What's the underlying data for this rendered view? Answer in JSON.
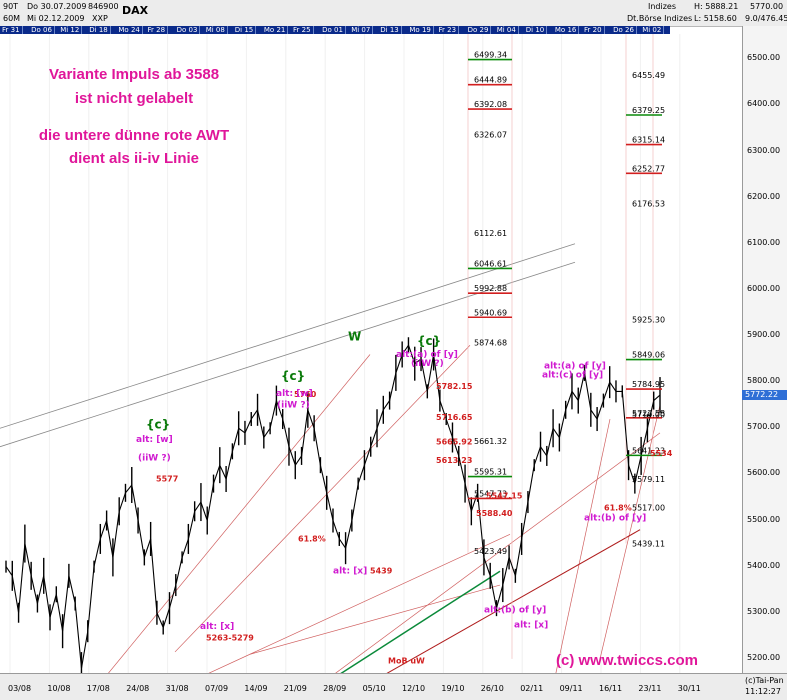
{
  "header": {
    "row1_period": "90T",
    "row1_date": "Do 30.07.2009",
    "row1_code": "846900",
    "symbol": "DAX",
    "row2_period": "60M",
    "row2_date": "Mi 02.12.2009",
    "row2_exchange": "XXP",
    "index_group": "Indizes",
    "index_exchange": "Dt.Börse Indizes",
    "high": "H: 5888.21",
    "low": "L: 5158.60",
    "last": "5770.00",
    "change": "9.0/476.45"
  },
  "date_tabs": [
    "Fr 31",
    "Do 06",
    "Mi 12",
    "Di 18",
    "Mo 24",
    "Fr 28",
    "Do 03",
    "Mi 08",
    "Di 15",
    "Mo 21",
    "Fr 25",
    "Do 01",
    "Mi 07",
    "Di 13",
    "Mo 19",
    "Fr 23",
    "Do 29",
    "Mi 04",
    "Di 10",
    "Mo 16",
    "Fr 20",
    "Do 26",
    "Mi 02"
  ],
  "annotations": {
    "note_line1": "Variante Impuls ab 3588",
    "note_line2": "ist nicht gelabelt",
    "note_line3": "die untere dünne rote AWT",
    "note_line4": "dient als ii-iv Linie",
    "copyright": "(c) www.twiccs.com"
  },
  "bottom": {
    "x_ticks": [
      "03/08",
      "10/08",
      "17/08",
      "24/08",
      "31/08",
      "07/09",
      "14/09",
      "21/09",
      "28/09",
      "05/10",
      "12/10",
      "19/10",
      "26/10",
      "02/11",
      "09/11",
      "16/11",
      "23/11",
      "30/11"
    ],
    "credit": "(c)Tai-Pan",
    "time": "11:12:27"
  },
  "current_price": "5772.22",
  "colors": {
    "up_wave": "#ff00ff",
    "down_wave": "#1a8a8a",
    "green_line": "#0b8a3a",
    "fib_red": "#d21f1f",
    "fib_green": "#0a8a0a",
    "label_magenta": "#d01ad0",
    "label_green": "#0a7a0a"
  },
  "chart_data": {
    "type": "candlestick",
    "title": "DAX",
    "ylim": [
      5150,
      6560
    ],
    "y_ticks": [
      5200,
      5300,
      5400,
      5500,
      5600,
      5700,
      5800,
      5900,
      6000,
      6100,
      6200,
      6300,
      6400,
      6500
    ],
    "price_path": [
      [
        "03/08",
        5400
      ],
      [
        "04/08",
        5380
      ],
      [
        "05/08",
        5300
      ],
      [
        "06/08",
        5450
      ],
      [
        "07/08",
        5380
      ],
      [
        "08/08",
        5320
      ],
      [
        "10/08",
        5380
      ],
      [
        "11/08",
        5290
      ],
      [
        "12/08",
        5340
      ],
      [
        "13/08",
        5260
      ],
      [
        "14/08",
        5380
      ],
      [
        "15/08",
        5320
      ],
      [
        "17/08",
        5180
      ],
      [
        "18/08",
        5260
      ],
      [
        "19/08",
        5400
      ],
      [
        "20/08",
        5460
      ],
      [
        "21/08",
        5500
      ],
      [
        "22/08",
        5420
      ],
      [
        "24/08",
        5520
      ],
      [
        "25/08",
        5560
      ],
      [
        "26/08",
        5577
      ],
      [
        "27/08",
        5500
      ],
      [
        "28/08",
        5420
      ],
      [
        "29/08",
        5460
      ],
      [
        "31/08",
        5300
      ],
      [
        "01/09",
        5268
      ],
      [
        "02/09",
        5310
      ],
      [
        "03/09",
        5360
      ],
      [
        "04/09",
        5420
      ],
      [
        "05/09",
        5460
      ],
      [
        "07/09",
        5520
      ],
      [
        "08/09",
        5540
      ],
      [
        "09/09",
        5500
      ],
      [
        "10/09",
        5580
      ],
      [
        "11/09",
        5620
      ],
      [
        "12/09",
        5590
      ],
      [
        "14/09",
        5650
      ],
      [
        "15/09",
        5700
      ],
      [
        "16/09",
        5690
      ],
      [
        "17/09",
        5720
      ],
      [
        "18/09",
        5740
      ],
      [
        "19/09",
        5680
      ],
      [
        "21/09",
        5700
      ],
      [
        "22/09",
        5760
      ],
      [
        "23/09",
        5720
      ],
      [
        "24/09",
        5660
      ],
      [
        "25/09",
        5620
      ],
      [
        "26/09",
        5640
      ],
      [
        "28/09",
        5740
      ],
      [
        "29/09",
        5700
      ],
      [
        "30/09",
        5620
      ],
      [
        "01/10",
        5560
      ],
      [
        "02/10",
        5500
      ],
      [
        "03/10",
        5460
      ],
      [
        "05/10",
        5440
      ],
      [
        "06/10",
        5500
      ],
      [
        "07/10",
        5580
      ],
      [
        "08/10",
        5620
      ],
      [
        "09/10",
        5660
      ],
      [
        "10/10",
        5700
      ],
      [
        "12/10",
        5740
      ],
      [
        "13/10",
        5760
      ],
      [
        "14/10",
        5820
      ],
      [
        "15/10",
        5860
      ],
      [
        "16/10",
        5880
      ],
      [
        "17/10",
        5840
      ],
      [
        "19/10",
        5850
      ],
      [
        "20/10",
        5780
      ],
      [
        "21/10",
        5860
      ],
      [
        "22/10",
        5760
      ],
      [
        "23/10",
        5720
      ],
      [
        "24/10",
        5680
      ],
      [
        "26/10",
        5640
      ],
      [
        "27/10",
        5580
      ],
      [
        "28/10",
        5520
      ],
      [
        "29/10",
        5560
      ],
      [
        "30/10",
        5420
      ],
      [
        "31/10",
        5380
      ],
      [
        "02/11",
        5310
      ],
      [
        "03/11",
        5360
      ],
      [
        "04/11",
        5420
      ],
      [
        "05/11",
        5380
      ],
      [
        "06/11",
        5460
      ],
      [
        "07/11",
        5540
      ],
      [
        "09/11",
        5620
      ],
      [
        "10/11",
        5660
      ],
      [
        "11/11",
        5640
      ],
      [
        "12/11",
        5700
      ],
      [
        "13/11",
        5680
      ],
      [
        "14/11",
        5740
      ],
      [
        "16/11",
        5780
      ],
      [
        "17/11",
        5760
      ],
      [
        "18/11",
        5820
      ],
      [
        "19/11",
        5740
      ],
      [
        "20/11",
        5720
      ],
      [
        "21/11",
        5760
      ],
      [
        "23/11",
        5800
      ],
      [
        "24/11",
        5780
      ],
      [
        "25/11",
        5780
      ],
      [
        "26/11",
        5620
      ],
      [
        "27/11",
        5580
      ],
      [
        "28/11",
        5640
      ],
      [
        "30/11",
        5700
      ],
      [
        "01/12",
        5760
      ],
      [
        "02/12",
        5772
      ]
    ],
    "fib_levels": [
      {
        "value": 6499.34,
        "color": "green"
      },
      {
        "value": 6444.89,
        "color": "red"
      },
      {
        "value": 6392.08,
        "color": "red"
      },
      {
        "value": 6326.07,
        "color": "none"
      },
      {
        "value": 6112.61,
        "color": "none"
      },
      {
        "value": 6046.61,
        "color": "green"
      },
      {
        "value": 5992.88,
        "color": "red"
      },
      {
        "value": 5940.69,
        "color": "red"
      },
      {
        "value": 5874.68,
        "color": "none"
      },
      {
        "value": 5661.32,
        "color": "none"
      },
      {
        "value": 5595.31,
        "color": "green"
      },
      {
        "value": 5547.73,
        "color": "red"
      },
      {
        "value": 5423.49,
        "color": "none"
      },
      {
        "value": 6455.49,
        "color": "none"
      },
      {
        "value": 6379.25,
        "color": "green"
      },
      {
        "value": 6315.14,
        "color": "red"
      },
      {
        "value": 6252.77,
        "color": "red"
      },
      {
        "value": 6176.53,
        "color": "none"
      },
      {
        "value": 5925.3,
        "color": "none"
      },
      {
        "value": 5849.06,
        "color": "green"
      },
      {
        "value": 5784.95,
        "color": "red"
      },
      {
        "value": 5722.58,
        "color": "red"
      },
      {
        "value": 5719,
        "color": "none"
      },
      {
        "value": 5641.23,
        "color": "green"
      },
      {
        "value": 5579.11,
        "color": "none"
      },
      {
        "value": 5517.0,
        "color": "none"
      },
      {
        "value": 5439.11,
        "color": "none"
      }
    ],
    "price_labels": [
      "5577",
      "5760",
      "5439",
      "5263-5279",
      "61.8%",
      "5613.23",
      "5588.40",
      "5665.92",
      "5716.65",
      "5782.15",
      "5547.15",
      "5534",
      "61.8%",
      "MoB uW"
    ],
    "wave_labels": [
      {
        "text": "{c}",
        "color": "green"
      },
      {
        "text": "alt: [w]",
        "color": "magenta"
      },
      {
        "text": "(iiW ?)",
        "color": "magenta"
      },
      {
        "text": "{c}",
        "color": "green"
      },
      {
        "text": "alt: [w]",
        "color": "magenta"
      },
      {
        "text": "(iiW ?)",
        "color": "magenta"
      },
      {
        "text": "W",
        "color": "green"
      },
      {
        "text": "{c}",
        "color": "green"
      },
      {
        "text": "alt:(a) of [y]",
        "color": "magenta"
      },
      {
        "text": "(iiW ?)",
        "color": "magenta"
      },
      {
        "text": "alt: [x]",
        "color": "magenta"
      },
      {
        "text": "alt: [x]",
        "color": "magenta"
      },
      {
        "text": "alt:(b) of [y]",
        "color": "magenta"
      },
      {
        "text": "alt: [x]",
        "color": "magenta"
      },
      {
        "text": "alt:(a) of [y]",
        "color": "magenta"
      },
      {
        "text": "alt:(c) of [y]",
        "color": "magenta"
      },
      {
        "text": "alt:(b) of [y]",
        "color": "magenta"
      }
    ]
  }
}
